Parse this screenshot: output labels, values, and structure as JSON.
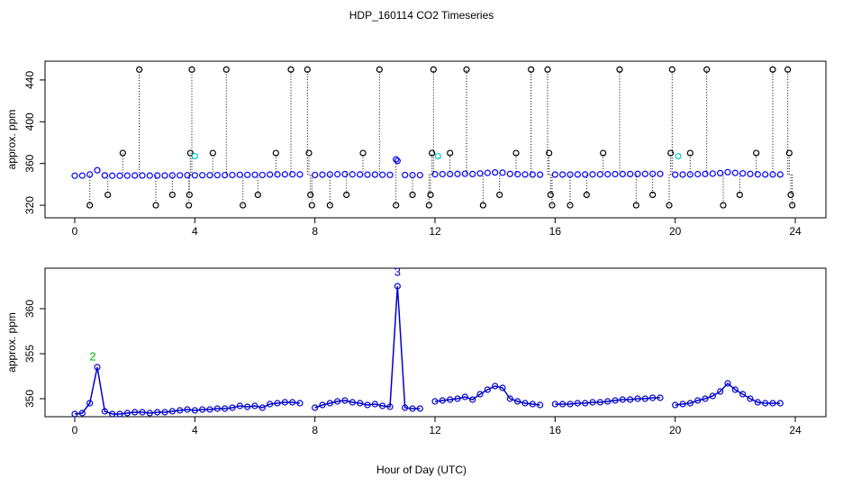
{
  "chart_data": [
    {
      "type": "scatter",
      "title": "HDP_160114  CO2 Timeseries",
      "ylabel": "approx. ppm",
      "xlim": [
        -0.99,
        25.02
      ],
      "ylim": [
        308,
        458
      ],
      "xticks": [
        0,
        4,
        8,
        12,
        16,
        20,
        24
      ],
      "yticks": [
        320,
        360,
        400,
        440
      ],
      "x": [
        0,
        0.25,
        0.5,
        0.75,
        1,
        1.25,
        1.5,
        1.75,
        2,
        2.25,
        2.5,
        2.75,
        3,
        3.25,
        3.5,
        3.75,
        4,
        4.25,
        4.5,
        4.75,
        5,
        5.25,
        5.5,
        5.75,
        6,
        6.25,
        6.5,
        6.75,
        7,
        7.25,
        7.5,
        7.75,
        8,
        8.25,
        8.5,
        8.75,
        9,
        9.25,
        9.5,
        9.75,
        10,
        10.25,
        10.5,
        10.75,
        11,
        11.25,
        11.5,
        11.75,
        12,
        12.25,
        12.5,
        12.75,
        13,
        13.25,
        13.5,
        13.75,
        14,
        14.25,
        14.5,
        14.75,
        15,
        15.25,
        15.5,
        15.75,
        16,
        16.25,
        16.5,
        16.75,
        17,
        17.25,
        17.5,
        17.75,
        18,
        18.25,
        18.5,
        18.75,
        19,
        19.25,
        19.5,
        19.75,
        20,
        20.25,
        20.5,
        20.75,
        21,
        21.25,
        21.5,
        21.75,
        22,
        22.25,
        22.5,
        22.75,
        23,
        23.25,
        23.5,
        23.75
      ],
      "series": [
        {
          "color": "#0000ff",
          "values": [
            348.3,
            348.4,
            349.5,
            353.5,
            348.6,
            348.3,
            348.3,
            348.4,
            348.5,
            348.5,
            348.4,
            348.5,
            348.5,
            348.6,
            348.7,
            348.8,
            348.7,
            348.8,
            348.8,
            348.9,
            348.9,
            349.0,
            349.2,
            349.1,
            349.2,
            349.0,
            349.4,
            349.5,
            349.6,
            349.6,
            349.5,
            null,
            349.0,
            349.3,
            349.5,
            349.7,
            349.8,
            349.6,
            349.5,
            349.3,
            349.4,
            349.2,
            349.1,
            362.5,
            349.0,
            348.9,
            348.9,
            null,
            349.7,
            349.8,
            349.9,
            350.0,
            350.2,
            349.9,
            350.5,
            351.0,
            351.4,
            351.2,
            350.0,
            349.7,
            349.5,
            349.4,
            349.3,
            null,
            349.4,
            349.4,
            349.4,
            349.5,
            349.5,
            349.6,
            349.6,
            349.7,
            349.8,
            349.9,
            349.9,
            350.0,
            350.0,
            350.1,
            350.1,
            null,
            349.3,
            349.4,
            349.5,
            349.8,
            350.0,
            350.3,
            350.8,
            351.7,
            351.0,
            350.5,
            350.0,
            349.6,
            349.5,
            349.5,
            349.5,
            null
          ]
        },
        {
          "color": "#000000",
          "stems": true,
          "x": [
            0.5,
            1.1,
            1.6,
            2.15,
            2.7,
            3.25,
            3.8,
            3.82,
            3.85,
            3.9,
            4.6,
            5.05,
            5.6,
            6.1,
            6.7,
            7.2,
            7.75,
            7.8,
            7.85,
            7.9,
            8.5,
            9.05,
            9.6,
            10.15,
            10.7,
            11.25,
            11.8,
            11.85,
            11.9,
            11.95,
            12.5,
            13.05,
            13.6,
            14.15,
            14.7,
            15.2,
            15.75,
            15.8,
            15.85,
            15.9,
            16.5,
            17.05,
            17.6,
            18.15,
            18.7,
            19.25,
            19.8,
            19.85,
            19.9,
            20.5,
            21.05,
            21.6,
            22.15,
            22.7,
            23.25,
            23.75,
            23.8,
            23.85,
            23.9
          ],
          "values": [
            320,
            330,
            370,
            450,
            320,
            330,
            320,
            330,
            370,
            450,
            370,
            450,
            320,
            330,
            370,
            450,
            450,
            370,
            330,
            320,
            320,
            330,
            370,
            450,
            320,
            330,
            320,
            330,
            370,
            450,
            370,
            450,
            320,
            330,
            370,
            450,
            450,
            370,
            330,
            320,
            320,
            330,
            370,
            450,
            320,
            330,
            320,
            370,
            450,
            370,
            450,
            320,
            330,
            370,
            450,
            450,
            370,
            330,
            320
          ]
        },
        {
          "color": "#00cccc",
          "x": [
            4.0,
            12.1,
            20.1
          ],
          "values": [
            367,
            367,
            367
          ]
        },
        {
          "color": "#0000ff",
          "x": [
            10.7
          ],
          "values": [
            364
          ]
        }
      ]
    },
    {
      "type": "line",
      "ylabel": "approx. ppm",
      "xlabel": "Hour of Day (UTC)",
      "xlim": [
        -0.99,
        25.02
      ],
      "ylim": [
        348,
        364.5
      ],
      "xticks": [
        0,
        4,
        8,
        12,
        16,
        20,
        24
      ],
      "yticks": [
        350,
        355,
        360
      ],
      "x": [
        0,
        0.25,
        0.5,
        0.75,
        1,
        1.25,
        1.5,
        1.75,
        2,
        2.25,
        2.5,
        2.75,
        3,
        3.25,
        3.5,
        3.75,
        4,
        4.25,
        4.5,
        4.75,
        5,
        5.25,
        5.5,
        5.75,
        6,
        6.25,
        6.5,
        6.75,
        7,
        7.25,
        7.5,
        7.75,
        8,
        8.25,
        8.5,
        8.75,
        9,
        9.25,
        9.5,
        9.75,
        10,
        10.25,
        10.5,
        10.75,
        11,
        11.25,
        11.5,
        11.75,
        12,
        12.25,
        12.5,
        12.75,
        13,
        13.25,
        13.5,
        13.75,
        14,
        14.25,
        14.5,
        14.75,
        15,
        15.25,
        15.5,
        15.75,
        16,
        16.25,
        16.5,
        16.75,
        17,
        17.25,
        17.5,
        17.75,
        18,
        18.25,
        18.5,
        18.75,
        19,
        19.25,
        19.5,
        19.75,
        20,
        20.25,
        20.5,
        20.75,
        21,
        21.25,
        21.5,
        21.75,
        22,
        22.25,
        22.5,
        22.75,
        23,
        23.25,
        23.5,
        23.75
      ],
      "series": [
        {
          "color": "#0000cc",
          "values": [
            348.3,
            348.4,
            349.5,
            353.5,
            348.6,
            348.3,
            348.3,
            348.4,
            348.5,
            348.5,
            348.4,
            348.5,
            348.5,
            348.6,
            348.7,
            348.8,
            348.7,
            348.8,
            348.8,
            348.9,
            348.9,
            349.0,
            349.2,
            349.1,
            349.2,
            349.0,
            349.4,
            349.5,
            349.6,
            349.6,
            349.5,
            null,
            349.0,
            349.3,
            349.5,
            349.7,
            349.8,
            349.6,
            349.5,
            349.3,
            349.4,
            349.2,
            349.1,
            362.5,
            349.0,
            348.9,
            348.9,
            null,
            349.7,
            349.8,
            349.9,
            350.0,
            350.2,
            349.9,
            350.5,
            351.0,
            351.4,
            351.2,
            350.0,
            349.7,
            349.5,
            349.4,
            349.3,
            null,
            349.4,
            349.4,
            349.4,
            349.5,
            349.5,
            349.6,
            349.6,
            349.7,
            349.8,
            349.9,
            349.9,
            350.0,
            350.0,
            350.1,
            350.1,
            null,
            349.3,
            349.4,
            349.5,
            349.8,
            350.0,
            350.3,
            350.8,
            351.7,
            351.0,
            350.5,
            350.0,
            349.6,
            349.5,
            349.5,
            349.5,
            null
          ]
        }
      ],
      "annotations": [
        {
          "x": 0.6,
          "y": 354.6,
          "label": "2",
          "color": "#00bb00"
        },
        {
          "x": 10.75,
          "y": 364.0,
          "label": "3",
          "color": "#0000cc"
        }
      ]
    }
  ]
}
